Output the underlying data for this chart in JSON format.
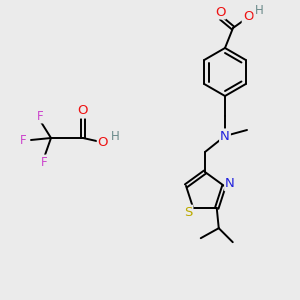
{
  "bg_color": "#ebebeb",
  "atom_colors": {
    "C": "#000000",
    "H": "#6a8a8a",
    "O": "#ee1111",
    "N": "#2222dd",
    "S": "#bbaa00",
    "F": "#cc44cc"
  },
  "bond_color": "#000000",
  "bond_width": 1.4,
  "font_size": 8.5
}
